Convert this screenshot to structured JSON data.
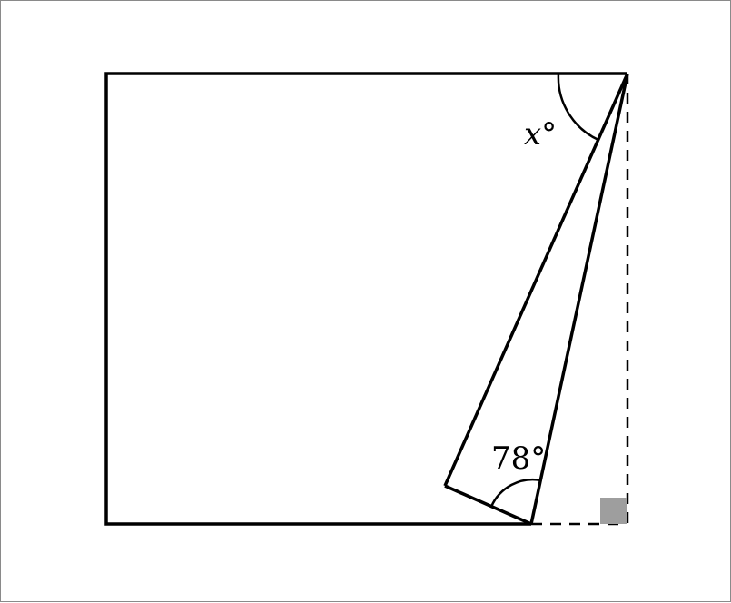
{
  "diagram": {
    "angle_x_label": "x°",
    "angle_78_label": "78°"
  },
  "colors": {
    "stroke": "#000000",
    "right_angle_marker": "#9e9e9e",
    "background": "#ffffff"
  }
}
